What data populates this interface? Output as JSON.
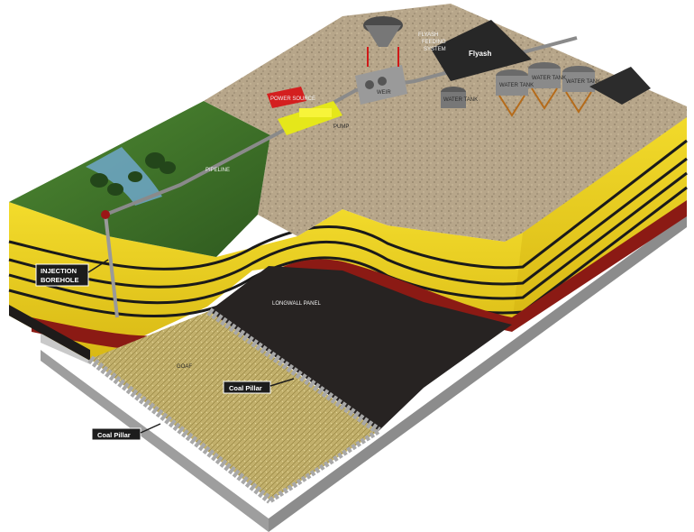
{
  "labels": {
    "injection_borehole_line1": "INJECTION",
    "injection_borehole_line2": "BOREHOLE",
    "coal_pillar_left": "Coal Pillar",
    "coal_pillar_right": "Coal Pillar",
    "longwall_panel": "LONGWALL PANEL",
    "goaf": "GOAF",
    "pipeline": "PIPELINE",
    "power_source": "POWER SOURCE",
    "pump": "PUMP",
    "weir": "WEIR",
    "water_tank_1": "WATER TANK",
    "water_tank_2": "WATER TANK",
    "water_tank_3": "WATER TANK",
    "water_tank_4": "WATER TANK",
    "flyash": "Flyash",
    "feeding_system_line1": "FLYASH",
    "feeding_system_line2": "FEEDING",
    "feeding_system_line3": "SYSTEM"
  },
  "colors": {
    "surface": "#b5a489",
    "grass": "#3f6e2a",
    "coal_seam_yellow": "#e8cf1a",
    "red_layer": "#8b1a14",
    "dark_layer": "#1e1b1a",
    "panel_black": "#272322",
    "goaf": "#bfae6a",
    "base_grey": "#bdbdbd",
    "label_bg": "#1c1c1c"
  }
}
